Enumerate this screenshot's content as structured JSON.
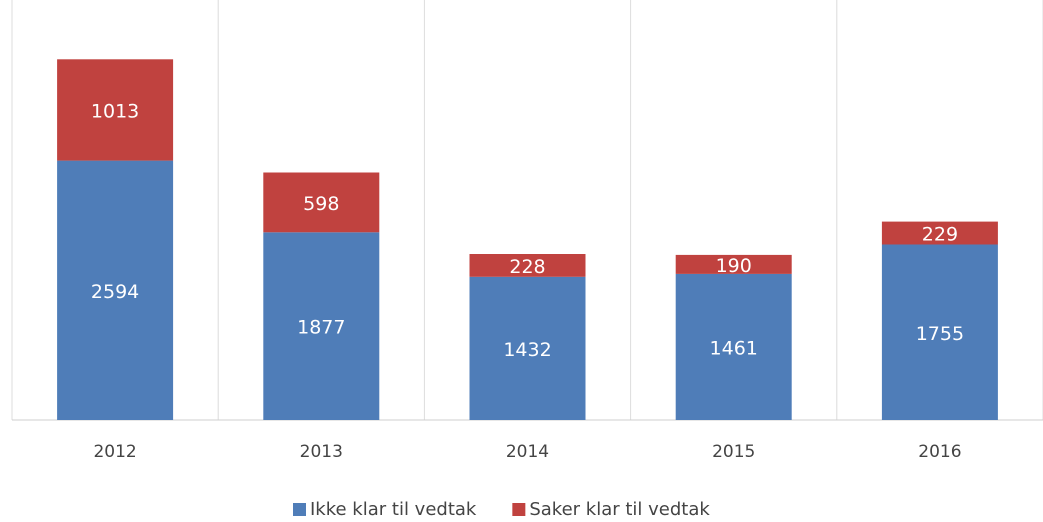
{
  "chart_data": {
    "type": "stacked_bar",
    "categories": [
      "2012",
      "2013",
      "2014",
      "2015",
      "2016"
    ],
    "series": [
      {
        "name": "Ikke klar til vedtak",
        "color": "#4f7db8",
        "values": [
          2594,
          1877,
          1432,
          1461,
          1755
        ]
      },
      {
        "name": "Saker klar til vedtak",
        "color": "#c0423f",
        "values": [
          1013,
          598,
          228,
          190,
          229
        ]
      }
    ],
    "legend": "bottom"
  }
}
